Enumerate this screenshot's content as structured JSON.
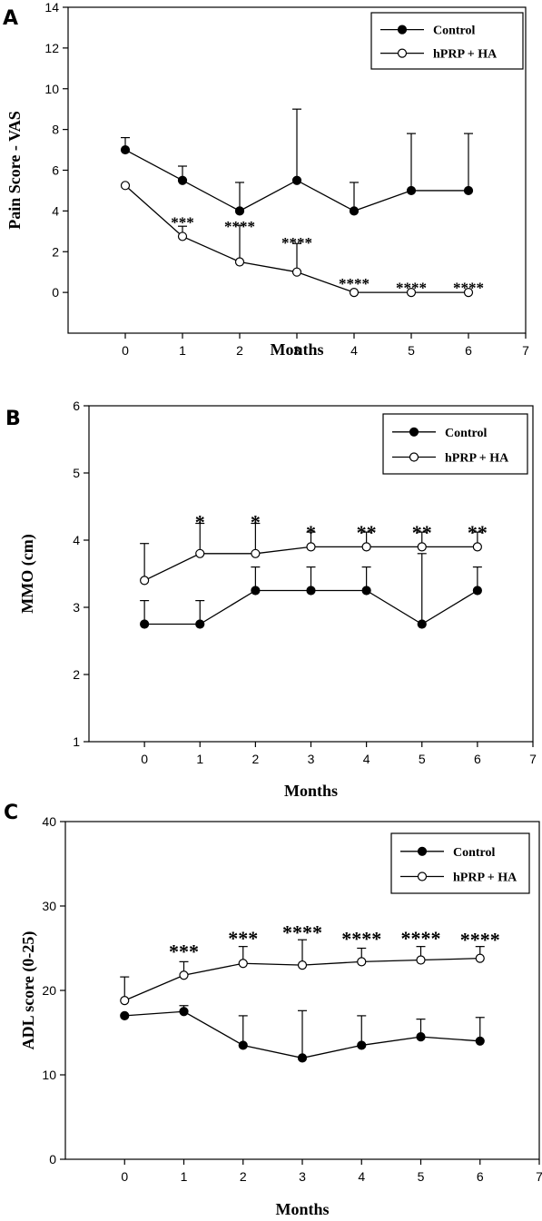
{
  "chart_data": [
    {
      "type": "line",
      "panel": "A",
      "xlabel": "Months",
      "ylabel": "Pain Score - VAS",
      "xlim": [
        -1,
        7
      ],
      "ylim": [
        -2,
        14
      ],
      "xticks": [
        0,
        1,
        2,
        3,
        4,
        5,
        6,
        7
      ],
      "yticks": [
        0,
        2,
        4,
        6,
        8,
        10,
        12,
        14
      ],
      "legend_position": "top-right",
      "series": [
        {
          "name": "Control",
          "marker": "filled",
          "x": [
            0,
            1,
            2,
            3,
            4,
            5,
            6
          ],
          "values": [
            7,
            5.5,
            4,
            5.5,
            4,
            5,
            5
          ],
          "error_upper": [
            7.6,
            6.2,
            5.4,
            9.0,
            5.4,
            7.8,
            7.8
          ]
        },
        {
          "name": "hPRP + HA",
          "marker": "open",
          "x": [
            0,
            1,
            2,
            3,
            4,
            5,
            6
          ],
          "values": [
            5.25,
            2.75,
            1.5,
            1.0,
            0,
            0,
            0
          ],
          "error_upper": [
            null,
            3.25,
            3.3,
            2.4,
            null,
            null,
            null
          ]
        }
      ],
      "annotations": [
        {
          "x": 1,
          "y": 3.6,
          "text": "***"
        },
        {
          "x": 2,
          "y": 3.4,
          "text": "****"
        },
        {
          "x": 3,
          "y": 2.6,
          "text": "****"
        },
        {
          "x": 4,
          "y": 0.6,
          "text": "****"
        },
        {
          "x": 5,
          "y": 0.4,
          "text": "****"
        },
        {
          "x": 6,
          "y": 0.4,
          "text": "****"
        }
      ],
      "sig_size": 17
    },
    {
      "type": "line",
      "panel": "B",
      "xlabel": "Months",
      "ylabel": "MMO (cm)",
      "xlim": [
        -1,
        7
      ],
      "ylim": [
        1,
        6
      ],
      "xticks": [
        0,
        1,
        2,
        3,
        4,
        5,
        6,
        7
      ],
      "yticks": [
        1,
        2,
        3,
        4,
        5,
        6
      ],
      "legend_position": "top-right",
      "series": [
        {
          "name": "Control",
          "marker": "filled",
          "x": [
            0,
            1,
            2,
            3,
            4,
            5,
            6
          ],
          "values": [
            2.75,
            2.75,
            3.25,
            3.25,
            3.25,
            2.75,
            3.25
          ],
          "error_upper": [
            3.1,
            3.1,
            3.6,
            3.6,
            3.6,
            3.8,
            3.6
          ]
        },
        {
          "name": "hPRP + HA",
          "marker": "open",
          "x": [
            0,
            1,
            2,
            3,
            4,
            5,
            6
          ],
          "values": [
            3.4,
            3.8,
            3.8,
            3.9,
            3.9,
            3.9,
            3.9
          ],
          "error_upper": [
            3.95,
            4.25,
            4.25,
            4.12,
            4.12,
            4.12,
            4.12
          ]
        }
      ],
      "annotations": [
        {
          "x": 1,
          "y": 4.33,
          "text": "*"
        },
        {
          "x": 2,
          "y": 4.33,
          "text": "*"
        },
        {
          "x": 3,
          "y": 4.18,
          "text": "*"
        },
        {
          "x": 4,
          "y": 4.18,
          "text": "**"
        },
        {
          "x": 5,
          "y": 4.18,
          "text": "**"
        },
        {
          "x": 6,
          "y": 4.18,
          "text": "**"
        }
      ],
      "sig_size": 22
    },
    {
      "type": "line",
      "panel": "C",
      "xlabel": "Months",
      "ylabel": "ADL score (0-25)",
      "xlim": [
        -1,
        7
      ],
      "ylim": [
        0,
        40
      ],
      "xticks": [
        0,
        1,
        2,
        3,
        4,
        5,
        6,
        7
      ],
      "yticks": [
        0,
        10,
        20,
        30,
        40
      ],
      "legend_position": "top-right",
      "series": [
        {
          "name": "Control",
          "marker": "filled",
          "x": [
            0,
            1,
            2,
            3,
            4,
            5,
            6
          ],
          "values": [
            17,
            17.5,
            13.5,
            12,
            13.5,
            14.5,
            14
          ],
          "error_upper": [
            null,
            18.2,
            17,
            17.6,
            17,
            16.6,
            16.8
          ]
        },
        {
          "name": "hPRP + HA",
          "marker": "open",
          "x": [
            0,
            1,
            2,
            3,
            4,
            5,
            6
          ],
          "values": [
            18.8,
            21.8,
            23.2,
            23,
            23.4,
            23.6,
            23.8
          ],
          "error_upper": [
            21.6,
            23.4,
            25.2,
            26,
            25,
            25.2,
            25.2
          ]
        }
      ],
      "annotations": [
        {
          "x": 1,
          "y": 25.1,
          "text": "***"
        },
        {
          "x": 2,
          "y": 26.7,
          "text": "***"
        },
        {
          "x": 3,
          "y": 27.4,
          "text": "****"
        },
        {
          "x": 4,
          "y": 26.6,
          "text": "****"
        },
        {
          "x": 5,
          "y": 26.7,
          "text": "****"
        },
        {
          "x": 6,
          "y": 26.5,
          "text": "****"
        }
      ],
      "sig_size": 22
    }
  ]
}
